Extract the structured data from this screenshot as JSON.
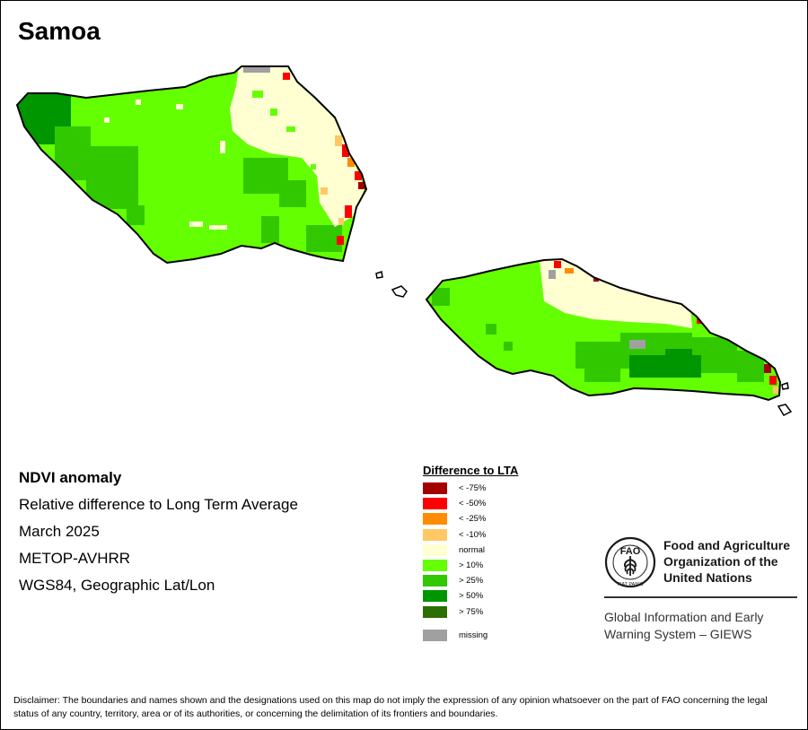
{
  "map": {
    "title": "Samoa",
    "info": {
      "product": "NDVI anomaly",
      "description": "Relative difference to Long Term Average",
      "date": "March 2025",
      "sensor": "METOP-AVHRR",
      "projection": "WGS84, Geographic Lat/Lon"
    },
    "legend": {
      "title": "Difference to LTA",
      "items": [
        {
          "label": "< -75%",
          "color": "#a50000"
        },
        {
          "label": "< -50%",
          "color": "#ff0000"
        },
        {
          "label": "< -25%",
          "color": "#ff8c00"
        },
        {
          "label": "< -10%",
          "color": "#ffc864"
        },
        {
          "label": "normal",
          "color": "#ffffd2"
        },
        {
          "label": "> 10%",
          "color": "#64ff00"
        },
        {
          "label": "> 25%",
          "color": "#32c800"
        },
        {
          "label": "> 50%",
          "color": "#009600"
        },
        {
          "label": "> 75%",
          "color": "#2d6e00"
        }
      ],
      "missing": {
        "label": "missing",
        "color": "#a0a0a0"
      }
    },
    "organization": {
      "logo_text": "FAO",
      "logo_motto": "FIAT PANIS",
      "name_lines": [
        "Food and Agriculture",
        "Organization of the",
        "United Nations"
      ],
      "program_lines": [
        "Global Information and Early",
        "Warning System – GIEWS"
      ]
    },
    "disclaimer": "Disclaimer: The boundaries and names shown and the designations used on this map do not imply the expression of any opinion whatsoever on the part of FAO concerning the legal status of any country, territory, area or of its authorities, or concerning the delimitation of its frontiers and boundaries."
  }
}
